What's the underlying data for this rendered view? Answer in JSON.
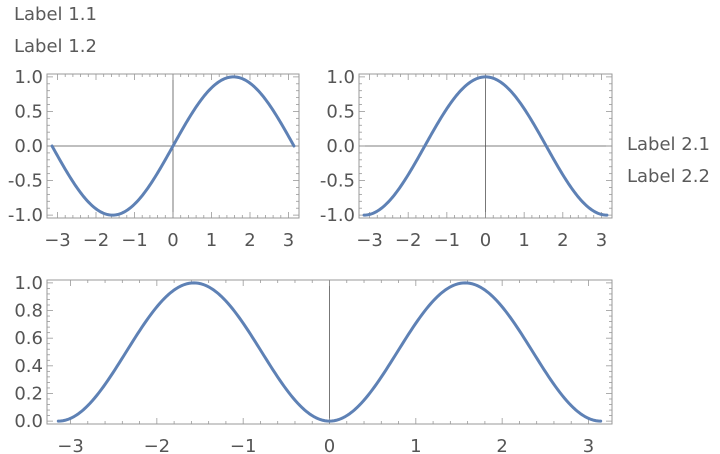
{
  "labels": {
    "label_1_1": "Label 1.1",
    "label_1_2": "Label 1.2",
    "label_2_1": "Label 2.1",
    "label_2_2": "Label 2.2"
  },
  "colors": {
    "curve": "#5e81b5",
    "axis": "#555555",
    "frame": "#999999"
  },
  "chart_data": [
    {
      "type": "line",
      "title": "",
      "function": "sin(x)",
      "xlim": [
        -3.14159,
        3.14159
      ],
      "ylim": [
        -1.0,
        1.0
      ],
      "xticks": [
        -3,
        -2,
        -1,
        0,
        1,
        2,
        3
      ],
      "xtick_labels": [
        "−3",
        "−2",
        "−1",
        "0",
        "1",
        "2",
        "3"
      ],
      "yticks": [
        -1.0,
        -0.5,
        0.0,
        0.5,
        1.0
      ],
      "ytick_labels": [
        "-1.0",
        "-0.5",
        "0.0",
        "0.5",
        "1.0"
      ],
      "grid": false,
      "x": [
        -3.14,
        -2.36,
        -1.57,
        -0.79,
        0,
        0.79,
        1.57,
        2.36,
        3.14
      ],
      "y": [
        0,
        -0.71,
        -1.0,
        -0.71,
        0,
        0.71,
        1.0,
        0.71,
        0
      ]
    },
    {
      "type": "line",
      "title": "",
      "function": "cos(x)",
      "xlim": [
        -3.14159,
        3.14159
      ],
      "ylim": [
        -1.0,
        1.0
      ],
      "xticks": [
        -3,
        -2,
        -1,
        0,
        1,
        2,
        3
      ],
      "xtick_labels": [
        "−3",
        "−2",
        "−1",
        "0",
        "1",
        "2",
        "3"
      ],
      "yticks": [
        -1.0,
        -0.5,
        0.0,
        0.5,
        1.0
      ],
      "ytick_labels": [
        "-1.0",
        "-0.5",
        "0.0",
        "0.5",
        "1.0"
      ],
      "grid": false,
      "x": [
        -3.14,
        -2.36,
        -1.57,
        -0.79,
        0,
        0.79,
        1.57,
        2.36,
        3.14
      ],
      "y": [
        -1.0,
        -0.71,
        0,
        0.71,
        1.0,
        0.71,
        0,
        -0.71,
        -1.0
      ]
    },
    {
      "type": "line",
      "title": "",
      "function": "sin(x)^2",
      "xlim": [
        -3.14159,
        3.14159
      ],
      "ylim": [
        0.0,
        1.0
      ],
      "xticks": [
        -3,
        -2,
        -1,
        0,
        1,
        2,
        3
      ],
      "xtick_labels": [
        "−3",
        "−2",
        "−1",
        "0",
        "1",
        "2",
        "3"
      ],
      "yticks": [
        0.0,
        0.2,
        0.4,
        0.6,
        0.8,
        1.0
      ],
      "ytick_labels": [
        "0.0",
        "0.2",
        "0.4",
        "0.6",
        "0.8",
        "1.0"
      ],
      "grid": false,
      "x": [
        -3.14,
        -2.36,
        -1.57,
        -0.79,
        0,
        0.79,
        1.57,
        2.36,
        3.14
      ],
      "y": [
        0,
        0.5,
        1.0,
        0.5,
        0,
        0.5,
        1.0,
        0.5,
        0
      ]
    }
  ]
}
